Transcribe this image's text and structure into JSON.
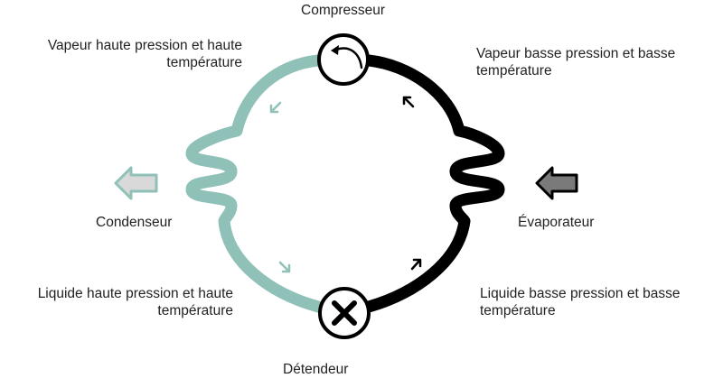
{
  "components": {
    "compressor": "Compresseur",
    "expansion_valve": "Détendeur",
    "condenser": "Condenseur",
    "evaporator": "Évaporateur"
  },
  "states": {
    "top_left": {
      "line1": "Vapeur haute pression et haute",
      "line2": "température"
    },
    "top_right": {
      "line1": "Vapeur basse pression et basse",
      "line2": "température"
    },
    "bottom_left": {
      "line1": "Liquide haute pression et haute",
      "line2": "température"
    },
    "bottom_right": {
      "line1": "Liquide basse pression et basse",
      "line2": "température"
    }
  },
  "colors": {
    "hot_side": "#8fc1b8",
    "cold_side": "#000000",
    "condenser_arrow": "#d9d9d9",
    "evaporator_arrow": "#7a7a7a"
  }
}
